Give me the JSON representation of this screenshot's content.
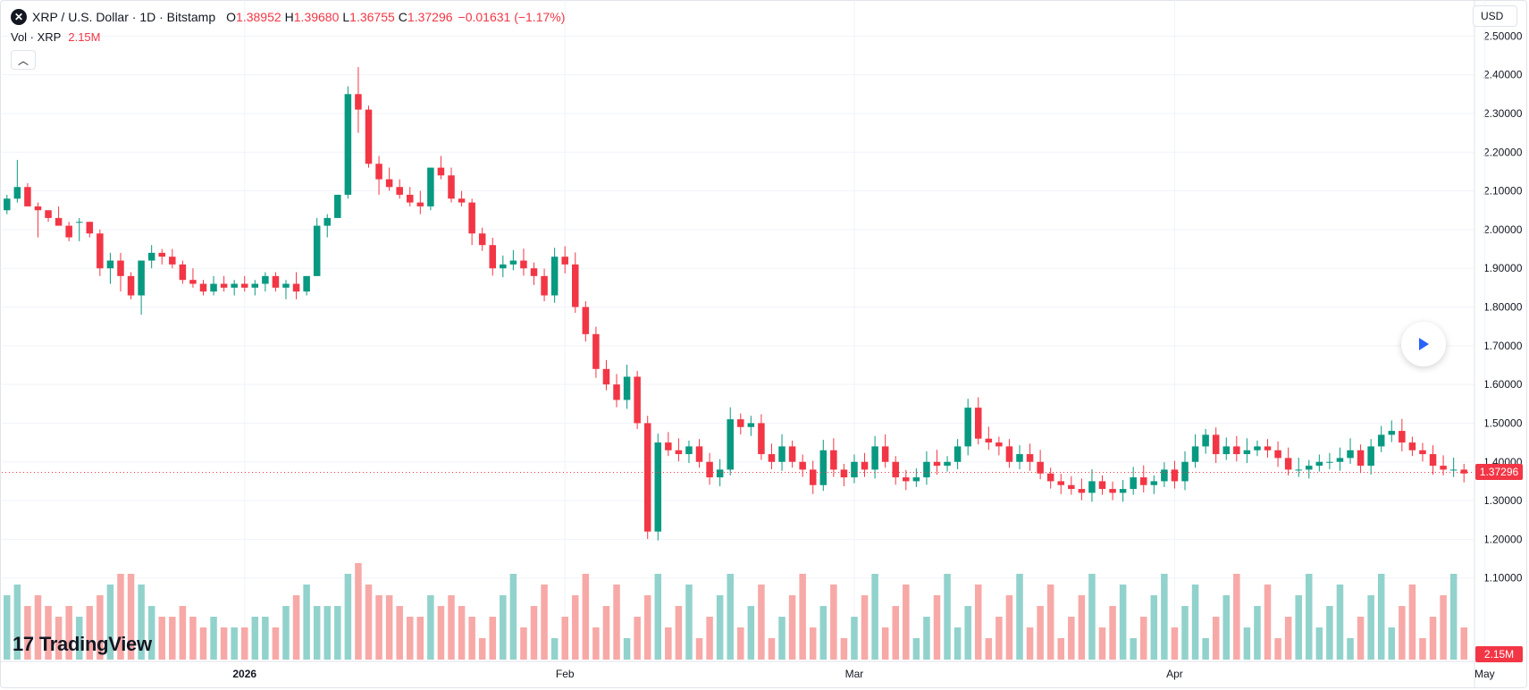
{
  "legend": {
    "title": "XRP / U.S. Dollar · 1D · Bitstamp",
    "o_label": "O",
    "o_value": "1.38952",
    "h_label": "H",
    "h_value": "1.39680",
    "l_label": "L",
    "l_value": "1.36755",
    "c_label": "C",
    "c_value": "1.37296",
    "change": "−0.01631 (−1.17%)"
  },
  "volume_legend": {
    "label": "Vol · XRP",
    "value": "2.15M"
  },
  "currency": "USD",
  "brand": "TradingView",
  "current_price_tag": "1.37296",
  "current_volume_tag": "2.15M",
  "colors": {
    "up": "#089981",
    "down": "#f23645",
    "up_vol": "#92d2cc",
    "down_vol": "#f7a9a7",
    "grid": "#f0f3fa",
    "price_line": "#f23645",
    "accent": "#2962ff"
  },
  "chart_data": {
    "type": "candlestick",
    "y_ticks": [
      "1.10000",
      "1.20000",
      "1.30000",
      "1.40000",
      "1.50000",
      "1.60000",
      "1.70000",
      "1.80000",
      "1.90000",
      "2.00000",
      "2.10000",
      "2.20000",
      "2.30000",
      "2.40000",
      "2.50000"
    ],
    "ylim": [
      1.0,
      2.51
    ],
    "x_labels": [
      {
        "label": "2026",
        "index": 23
      },
      {
        "label": "Feb",
        "index": 54
      },
      {
        "label": "Mar",
        "index": 82
      },
      {
        "label": "Apr",
        "index": 113
      },
      {
        "label": "May",
        "index": 143
      }
    ],
    "volume_max_millions": 10,
    "candles": [
      [
        2.05,
        2.09,
        2.04,
        2.08,
        6
      ],
      [
        2.08,
        2.18,
        2.07,
        2.11,
        7
      ],
      [
        2.11,
        2.12,
        2.06,
        2.06,
        5
      ],
      [
        2.06,
        2.07,
        1.98,
        2.05,
        6
      ],
      [
        2.05,
        2.05,
        2.02,
        2.03,
        5
      ],
      [
        2.03,
        2.06,
        2.01,
        2.01,
        4
      ],
      [
        2.01,
        2.02,
        1.97,
        1.98,
        5
      ],
      [
        2.02,
        2.03,
        1.97,
        2.02,
        4
      ],
      [
        2.02,
        2.02,
        1.98,
        1.99,
        5
      ],
      [
        1.99,
        2.0,
        1.88,
        1.9,
        6
      ],
      [
        1.9,
        1.94,
        1.86,
        1.92,
        7
      ],
      [
        1.92,
        1.94,
        1.84,
        1.88,
        8
      ],
      [
        1.88,
        1.89,
        1.82,
        1.83,
        8
      ],
      [
        1.83,
        1.92,
        1.78,
        1.92,
        7
      ],
      [
        1.92,
        1.96,
        1.9,
        1.94,
        5
      ],
      [
        1.94,
        1.95,
        1.91,
        1.93,
        4
      ],
      [
        1.93,
        1.95,
        1.9,
        1.91,
        4
      ],
      [
        1.91,
        1.92,
        1.86,
        1.87,
        5
      ],
      [
        1.87,
        1.9,
        1.85,
        1.86,
        4
      ],
      [
        1.86,
        1.87,
        1.83,
        1.84,
        3
      ],
      [
        1.84,
        1.88,
        1.83,
        1.86,
        4
      ],
      [
        1.86,
        1.88,
        1.84,
        1.85,
        3
      ],
      [
        1.85,
        1.87,
        1.83,
        1.86,
        3
      ],
      [
        1.86,
        1.88,
        1.84,
        1.85,
        3
      ],
      [
        1.85,
        1.87,
        1.83,
        1.86,
        4
      ],
      [
        1.86,
        1.89,
        1.84,
        1.88,
        4
      ],
      [
        1.88,
        1.89,
        1.84,
        1.85,
        3
      ],
      [
        1.85,
        1.87,
        1.82,
        1.86,
        5
      ],
      [
        1.86,
        1.89,
        1.82,
        1.84,
        6
      ],
      [
        1.84,
        1.88,
        1.83,
        1.88,
        7
      ],
      [
        1.88,
        2.03,
        1.88,
        2.01,
        5
      ],
      [
        2.01,
        2.04,
        1.98,
        2.03,
        5
      ],
      [
        2.03,
        2.09,
        2.03,
        2.09,
        5
      ],
      [
        2.09,
        2.37,
        2.08,
        2.35,
        8
      ],
      [
        2.35,
        2.42,
        2.25,
        2.31,
        9
      ],
      [
        2.31,
        2.32,
        2.16,
        2.17,
        7
      ],
      [
        2.17,
        2.19,
        2.09,
        2.13,
        6
      ],
      [
        2.13,
        2.16,
        2.1,
        2.11,
        6
      ],
      [
        2.11,
        2.13,
        2.08,
        2.09,
        5
      ],
      [
        2.09,
        2.11,
        2.06,
        2.07,
        4
      ],
      [
        2.07,
        2.1,
        2.04,
        2.06,
        4
      ],
      [
        2.06,
        2.16,
        2.05,
        2.16,
        6
      ],
      [
        2.16,
        2.19,
        2.13,
        2.14,
        5
      ],
      [
        2.14,
        2.16,
        2.07,
        2.08,
        6
      ],
      [
        2.08,
        2.1,
        2.06,
        2.07,
        5
      ],
      [
        2.07,
        2.08,
        1.96,
        1.99,
        4
      ]
    ]
  }
}
